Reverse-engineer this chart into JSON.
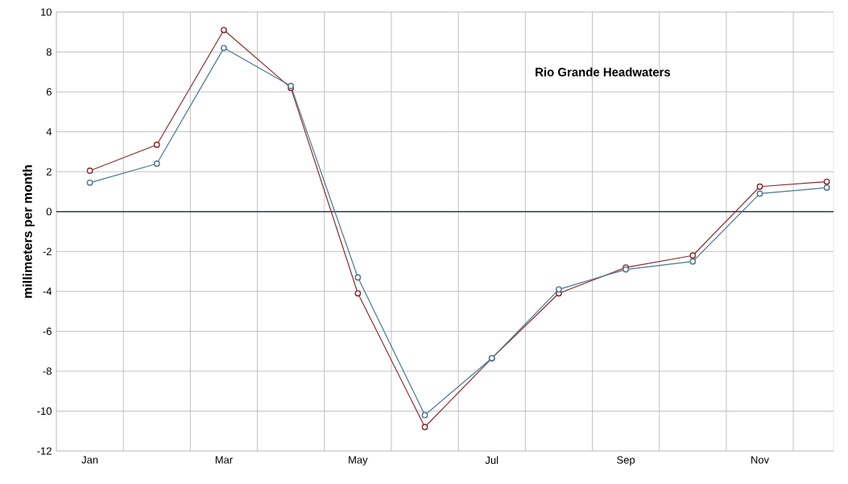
{
  "chart_data": {
    "type": "line",
    "title": "Rio Grande Headwaters",
    "ylabel": "millimeters per month",
    "categories": [
      "Jan",
      null,
      "Mar",
      null,
      "May",
      null,
      "Jul",
      null,
      "Sep",
      null,
      "Nov",
      null
    ],
    "series": [
      {
        "color": "#4a7890",
        "values": [
          1.45,
          2.4,
          8.2,
          6.3,
          -3.3,
          -10.2,
          -7.35,
          -3.9,
          -2.9,
          -2.5,
          0.9,
          1.2
        ]
      },
      {
        "color": "#8b2c2c",
        "values": [
          2.05,
          3.35,
          9.1,
          6.2,
          -4.1,
          -10.8,
          -7.35,
          -4.1,
          -2.8,
          -2.2,
          1.25,
          1.5
        ]
      }
    ],
    "ylim": [
      -12,
      10
    ],
    "yticks": [
      -12,
      -10,
      -8,
      -6,
      -4,
      -2,
      0,
      2,
      4,
      6,
      8,
      10
    ],
    "ref_lines": [
      {
        "axis": "y",
        "value": 0,
        "color": "#2e3e4c"
      }
    ],
    "grid": true,
    "marker": "circle",
    "line_style": "solid"
  }
}
